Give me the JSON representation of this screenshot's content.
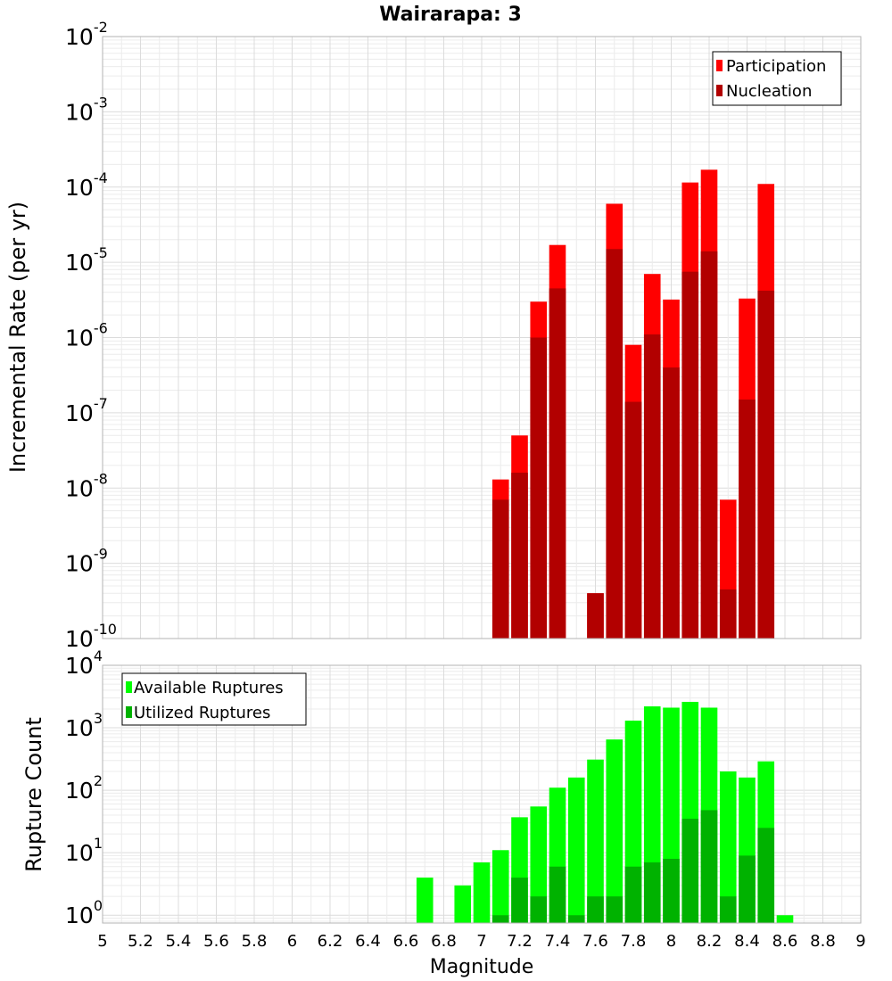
{
  "chart_data": [
    {
      "type": "bar",
      "title": "Wairarapa: 3",
      "xlabel": "",
      "ylabel": "Incremental Rate (per yr)",
      "yscale": "log",
      "xlim": [
        5,
        9
      ],
      "ylim": [
        1e-10,
        0.01
      ],
      "grid": true,
      "legend_position": "top-right",
      "x": [
        7.1,
        7.2,
        7.3,
        7.4,
        7.5,
        7.6,
        7.7,
        7.8,
        7.9,
        8.0,
        8.1,
        8.2,
        8.3,
        8.4,
        8.5
      ],
      "series": [
        {
          "name": "Participation",
          "color": "#ff0000",
          "values": [
            1.3e-08,
            5e-08,
            3e-06,
            1.7e-05,
            0,
            4e-10,
            6e-05,
            8e-07,
            7e-06,
            3.2e-06,
            0.000115,
            0.00017,
            7e-09,
            3.3e-06,
            0.00011
          ]
        },
        {
          "name": "Nucleation",
          "color": "#b20000",
          "values": [
            7e-09,
            1.6e-08,
            1e-06,
            4.5e-06,
            0,
            4e-10,
            1.5e-05,
            1.4e-07,
            1.1e-06,
            4e-07,
            7.5e-06,
            1.4e-05,
            4.5e-10,
            1.5e-07,
            4.2e-06
          ]
        }
      ]
    },
    {
      "type": "bar",
      "title": "",
      "xlabel": "Magnitude",
      "ylabel": "Rupture Count",
      "yscale": "log",
      "xlim": [
        5,
        9
      ],
      "ylim": [
        0.75,
        10000
      ],
      "grid": true,
      "legend_position": "top-left",
      "x": [
        6.7,
        6.8,
        6.9,
        7.0,
        7.1,
        7.2,
        7.3,
        7.4,
        7.5,
        7.6,
        7.7,
        7.8,
        7.9,
        8.0,
        8.1,
        8.2,
        8.3,
        8.4,
        8.5,
        8.6
      ],
      "series": [
        {
          "name": "Available Ruptures",
          "color": "#00ff00",
          "values": [
            4,
            0,
            3,
            7,
            11,
            37,
            55,
            110,
            160,
            310,
            650,
            1300,
            2200,
            2100,
            2600,
            2100,
            200,
            160,
            290,
            1
          ]
        },
        {
          "name": "Utilized Ruptures",
          "color": "#00b200",
          "values": [
            0,
            0,
            0,
            0,
            1,
            4,
            2,
            6,
            1,
            2,
            2,
            6,
            7,
            8,
            35,
            48,
            2,
            9,
            25,
            0
          ]
        }
      ],
      "xticks": [
        "5",
        "5.2",
        "5.4",
        "5.6",
        "5.8",
        "6",
        "6.2",
        "6.4",
        "6.6",
        "6.8",
        "7",
        "7.2",
        "7.4",
        "7.6",
        "7.8",
        "8",
        "8.2",
        "8.4",
        "8.6",
        "8.8",
        "9"
      ]
    }
  ]
}
